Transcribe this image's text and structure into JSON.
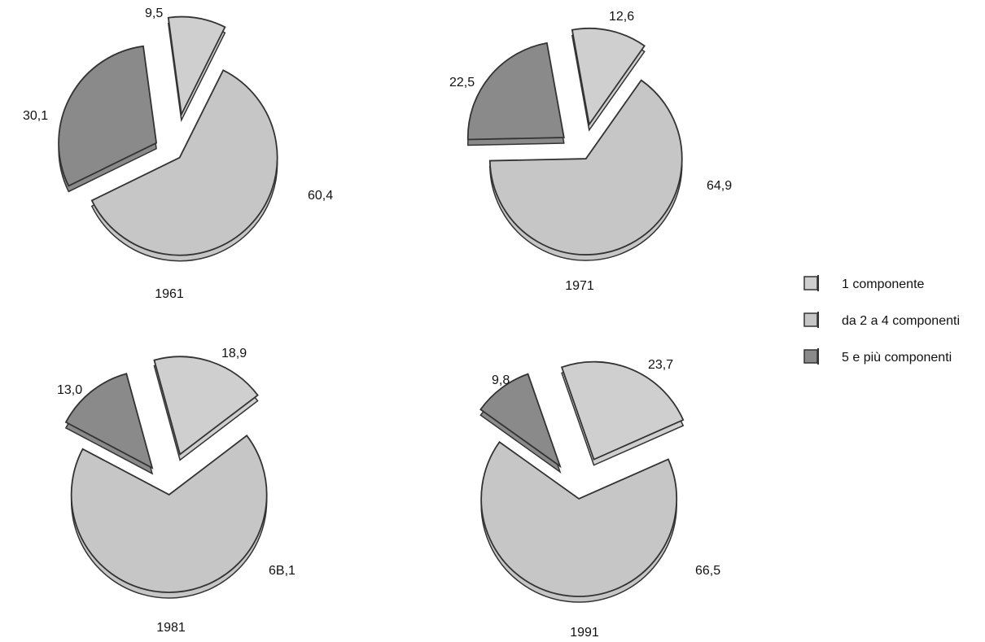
{
  "chart_data": [
    {
      "type": "pie",
      "year": "1961",
      "slices": [
        {
          "series": "1 componente",
          "value": 9.5,
          "label": "9,5"
        },
        {
          "series": "da 2 a 4 componenti",
          "value": 60.4,
          "label": "60,4"
        },
        {
          "series": "5 e più componenti",
          "value": 30.1,
          "label": "30,1"
        }
      ]
    },
    {
      "type": "pie",
      "year": "1971",
      "slices": [
        {
          "series": "1 componente",
          "value": 12.6,
          "label": "12,6"
        },
        {
          "series": "da 2 a 4 componenti",
          "value": 64.9,
          "label": "64,9"
        },
        {
          "series": "5 e più componenti",
          "value": 22.5,
          "label": "22,5"
        }
      ]
    },
    {
      "type": "pie",
      "year": "1981",
      "slices": [
        {
          "series": "1 componente",
          "value": 18.9,
          "label": "18,9"
        },
        {
          "series": "da 2 a 4 componenti",
          "value": 68.1,
          "label": "6B,1"
        },
        {
          "series": "5 e più componenti",
          "value": 13.0,
          "label": "13,0"
        }
      ]
    },
    {
      "type": "pie",
      "year": "1991",
      "slices": [
        {
          "series": "1 componente",
          "value": 23.7,
          "label": "23,7"
        },
        {
          "series": "da 2 a 4 componenti",
          "value": 66.5,
          "label": "66,5"
        },
        {
          "series": "5 e più componenti",
          "value": 9.8,
          "label": "9,8"
        }
      ]
    }
  ],
  "legend": {
    "placement": "right",
    "items": [
      {
        "label": "1 componente",
        "color": "#cfcfcf"
      },
      {
        "label": "da 2 a 4 componenti",
        "color": "#c6c6c6"
      },
      {
        "label": "5 e più componenti",
        "color": "#8a8a8a"
      }
    ]
  },
  "colors": {
    "1 componente": "#cfcfcf",
    "da 2 a 4 componenti": "#c6c6c6",
    "5 e più componenti": "#8a8a8a",
    "outline": "#333333"
  }
}
